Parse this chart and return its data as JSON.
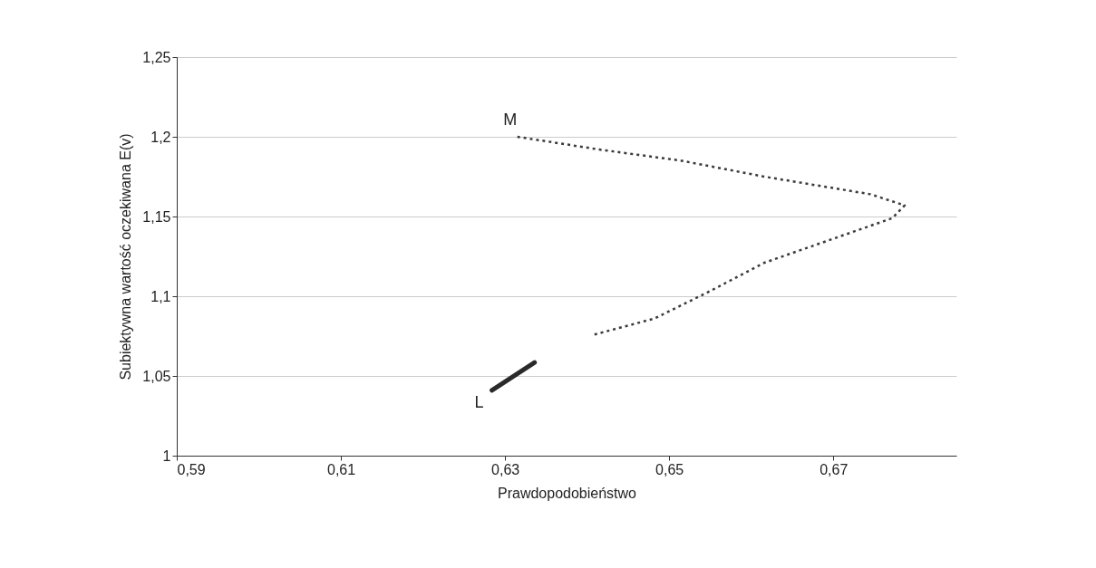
{
  "chart_data": {
    "type": "line",
    "xlabel": "Prawdopodobieństwo",
    "ylabel": "Subiektywna wartość oczekiwana E(v)",
    "xlim": [
      0.59,
      0.685
    ],
    "ylim": [
      1,
      1.25
    ],
    "xticks": [
      {
        "value": 0.59,
        "label": "0,59"
      },
      {
        "value": 0.61,
        "label": "0,61"
      },
      {
        "value": 0.63,
        "label": "0,63"
      },
      {
        "value": 0.65,
        "label": "0,65"
      },
      {
        "value": 0.67,
        "label": "0,67"
      }
    ],
    "yticks": [
      1,
      {
        "value": 1.05,
        "label": "1,05"
      },
      {
        "value": 1.1,
        "label": "1,1"
      },
      {
        "value": 1.15,
        "label": "1,15"
      },
      {
        "value": 1.2,
        "label": "1,2"
      },
      {
        "value": 1.25,
        "label": "1,25"
      }
    ],
    "grid": "y",
    "marker": "none",
    "series": [
      {
        "color": "#3a3a3a",
        "line_style": "dotted",
        "x": [
          0.6315,
          0.6415,
          0.6515,
          0.6616,
          0.6745,
          0.6787,
          0.6772,
          0.6694,
          0.6616,
          0.6549,
          0.6482,
          0.6409
        ],
        "values": [
          1.2,
          1.192,
          1.185,
          1.175,
          1.164,
          1.157,
          1.149,
          1.135,
          1.121,
          1.103,
          1.086,
          1.076
        ]
      },
      {
        "color": "#2a2a2a",
        "line_style": "solid",
        "x": [
          0.6284,
          0.6336
        ],
        "values": [
          1.041,
          1.0585
        ]
      }
    ],
    "annotations": [
      {
        "text": "M",
        "x": 0.6315,
        "y": 1.2
      },
      {
        "text": "L",
        "x": 0.6284,
        "y": 1.041
      }
    ]
  }
}
